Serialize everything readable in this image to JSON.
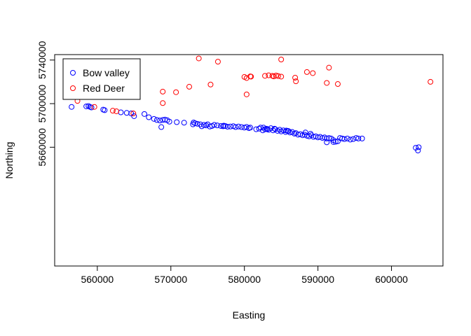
{
  "chart_data": {
    "type": "scatter",
    "title": "",
    "xlabel": "Easting",
    "ylabel": "Northing",
    "xlim": [
      554200,
      607000
    ],
    "ylim": [
      5551000,
      5745000
    ],
    "xticks": [
      560000,
      570000,
      580000,
      590000,
      600000
    ],
    "yticks": [
      5660000,
      5700000,
      5740000
    ],
    "legend": {
      "position": "top-left"
    },
    "series": [
      {
        "name": "Bow valley",
        "color": "#0000ff",
        "marker": "open-circle",
        "points": [
          [
            556500,
            5697000
          ],
          [
            558500,
            5697500
          ],
          [
            558800,
            5697800
          ],
          [
            559000,
            5697000
          ],
          [
            559200,
            5696500
          ],
          [
            560800,
            5694500
          ],
          [
            561000,
            5694000
          ],
          [
            563200,
            5692000
          ],
          [
            564000,
            5691500
          ],
          [
            564600,
            5691000
          ],
          [
            565000,
            5688500
          ],
          [
            566400,
            5690500
          ],
          [
            567000,
            5687500
          ],
          [
            567700,
            5686000
          ],
          [
            568100,
            5685000
          ],
          [
            568500,
            5684500
          ],
          [
            568900,
            5685000
          ],
          [
            569200,
            5685300
          ],
          [
            569500,
            5684800
          ],
          [
            568700,
            5678500
          ],
          [
            569800,
            5683500
          ],
          [
            570800,
            5683000
          ],
          [
            571800,
            5682500
          ],
          [
            573100,
            5682700
          ],
          [
            573300,
            5682000
          ],
          [
            573600,
            5681500
          ],
          [
            574000,
            5681000
          ],
          [
            574200,
            5679200
          ],
          [
            574500,
            5680500
          ],
          [
            574800,
            5680000
          ],
          [
            575000,
            5681000
          ],
          [
            575300,
            5679000
          ],
          [
            575600,
            5679500
          ],
          [
            575900,
            5680500
          ],
          [
            576300,
            5680000
          ],
          [
            576800,
            5679500
          ],
          [
            577100,
            5679200
          ],
          [
            577400,
            5679500
          ],
          [
            577700,
            5678800
          ],
          [
            578100,
            5679000
          ],
          [
            578500,
            5679300
          ],
          [
            578800,
            5678500
          ],
          [
            579200,
            5679000
          ],
          [
            579600,
            5678500
          ],
          [
            580000,
            5678000
          ],
          [
            580300,
            5678600
          ],
          [
            580600,
            5677500
          ],
          [
            580800,
            5678000
          ],
          [
            581600,
            5676500
          ],
          [
            582000,
            5677000
          ],
          [
            582200,
            5678000
          ],
          [
            582500,
            5675500
          ],
          [
            582800,
            5676500
          ],
          [
            583000,
            5677000
          ],
          [
            583300,
            5676000
          ],
          [
            583600,
            5677500
          ],
          [
            583900,
            5675500
          ],
          [
            584200,
            5676500
          ],
          [
            584500,
            5675000
          ],
          [
            584800,
            5676000
          ],
          [
            585000,
            5674500
          ],
          [
            585300,
            5675500
          ],
          [
            585600,
            5674000
          ],
          [
            585900,
            5675000
          ],
          [
            586200,
            5673500
          ],
          [
            586500,
            5674000
          ],
          [
            586800,
            5672500
          ],
          [
            587000,
            5673000
          ],
          [
            587300,
            5671500
          ],
          [
            587600,
            5672000
          ],
          [
            587900,
            5671000
          ],
          [
            588200,
            5671500
          ],
          [
            588500,
            5670500
          ],
          [
            588800,
            5670000
          ],
          [
            589100,
            5671000
          ],
          [
            589400,
            5669500
          ],
          [
            589700,
            5670000
          ],
          [
            590000,
            5669000
          ],
          [
            590300,
            5669500
          ],
          [
            590600,
            5668500
          ],
          [
            590900,
            5669000
          ],
          [
            591200,
            5668000
          ],
          [
            591500,
            5668500
          ],
          [
            591800,
            5668000
          ],
          [
            592100,
            5666500
          ],
          [
            592400,
            5665000
          ],
          [
            592700,
            5665500
          ],
          [
            593000,
            5668500
          ],
          [
            593300,
            5668000
          ],
          [
            593600,
            5667500
          ],
          [
            594000,
            5668000
          ],
          [
            594400,
            5667000
          ],
          [
            594800,
            5667500
          ],
          [
            595200,
            5668500
          ],
          [
            595500,
            5668000
          ],
          [
            596000,
            5668000
          ],
          [
            591200,
            5664500
          ],
          [
            592100,
            5664800
          ],
          [
            603300,
            5659500
          ],
          [
            603700,
            5660000
          ],
          [
            603600,
            5657000
          ],
          [
            582600,
            5678000
          ],
          [
            584100,
            5677000
          ],
          [
            586000,
            5674800
          ],
          [
            588300,
            5673500
          ],
          [
            573000,
            5681000
          ],
          [
            577200,
            5679800
          ],
          [
            583100,
            5676500
          ],
          [
            585700,
            5675300
          ],
          [
            589000,
            5672300
          ]
        ]
      },
      {
        "name": "Red Deer",
        "color": "#ff0000",
        "marker": "open-circle",
        "points": [
          [
            555900,
            5706500
          ],
          [
            557300,
            5702500
          ],
          [
            558600,
            5719000
          ],
          [
            559100,
            5719500
          ],
          [
            559300,
            5716000
          ],
          [
            559200,
            5713500
          ],
          [
            559600,
            5697000
          ],
          [
            562100,
            5693500
          ],
          [
            562600,
            5693000
          ],
          [
            564900,
            5691000
          ],
          [
            568900,
            5711000
          ],
          [
            568900,
            5700500
          ],
          [
            570700,
            5710500
          ],
          [
            572500,
            5715500
          ],
          [
            573800,
            5741500
          ],
          [
            575400,
            5717500
          ],
          [
            576400,
            5738500
          ],
          [
            580000,
            5724500
          ],
          [
            580300,
            5723500
          ],
          [
            580800,
            5725000
          ],
          [
            580300,
            5708500
          ],
          [
            580900,
            5724800
          ],
          [
            582800,
            5725500
          ],
          [
            583300,
            5726000
          ],
          [
            583800,
            5725500
          ],
          [
            584000,
            5725000
          ],
          [
            584300,
            5725800
          ],
          [
            584600,
            5725300
          ],
          [
            585000,
            5724800
          ],
          [
            585000,
            5740500
          ],
          [
            586900,
            5723800
          ],
          [
            587000,
            5720500
          ],
          [
            588500,
            5729000
          ],
          [
            589300,
            5728000
          ],
          [
            591200,
            5719000
          ],
          [
            591500,
            5733000
          ],
          [
            592700,
            5718000
          ],
          [
            605300,
            5720000
          ]
        ]
      }
    ]
  }
}
